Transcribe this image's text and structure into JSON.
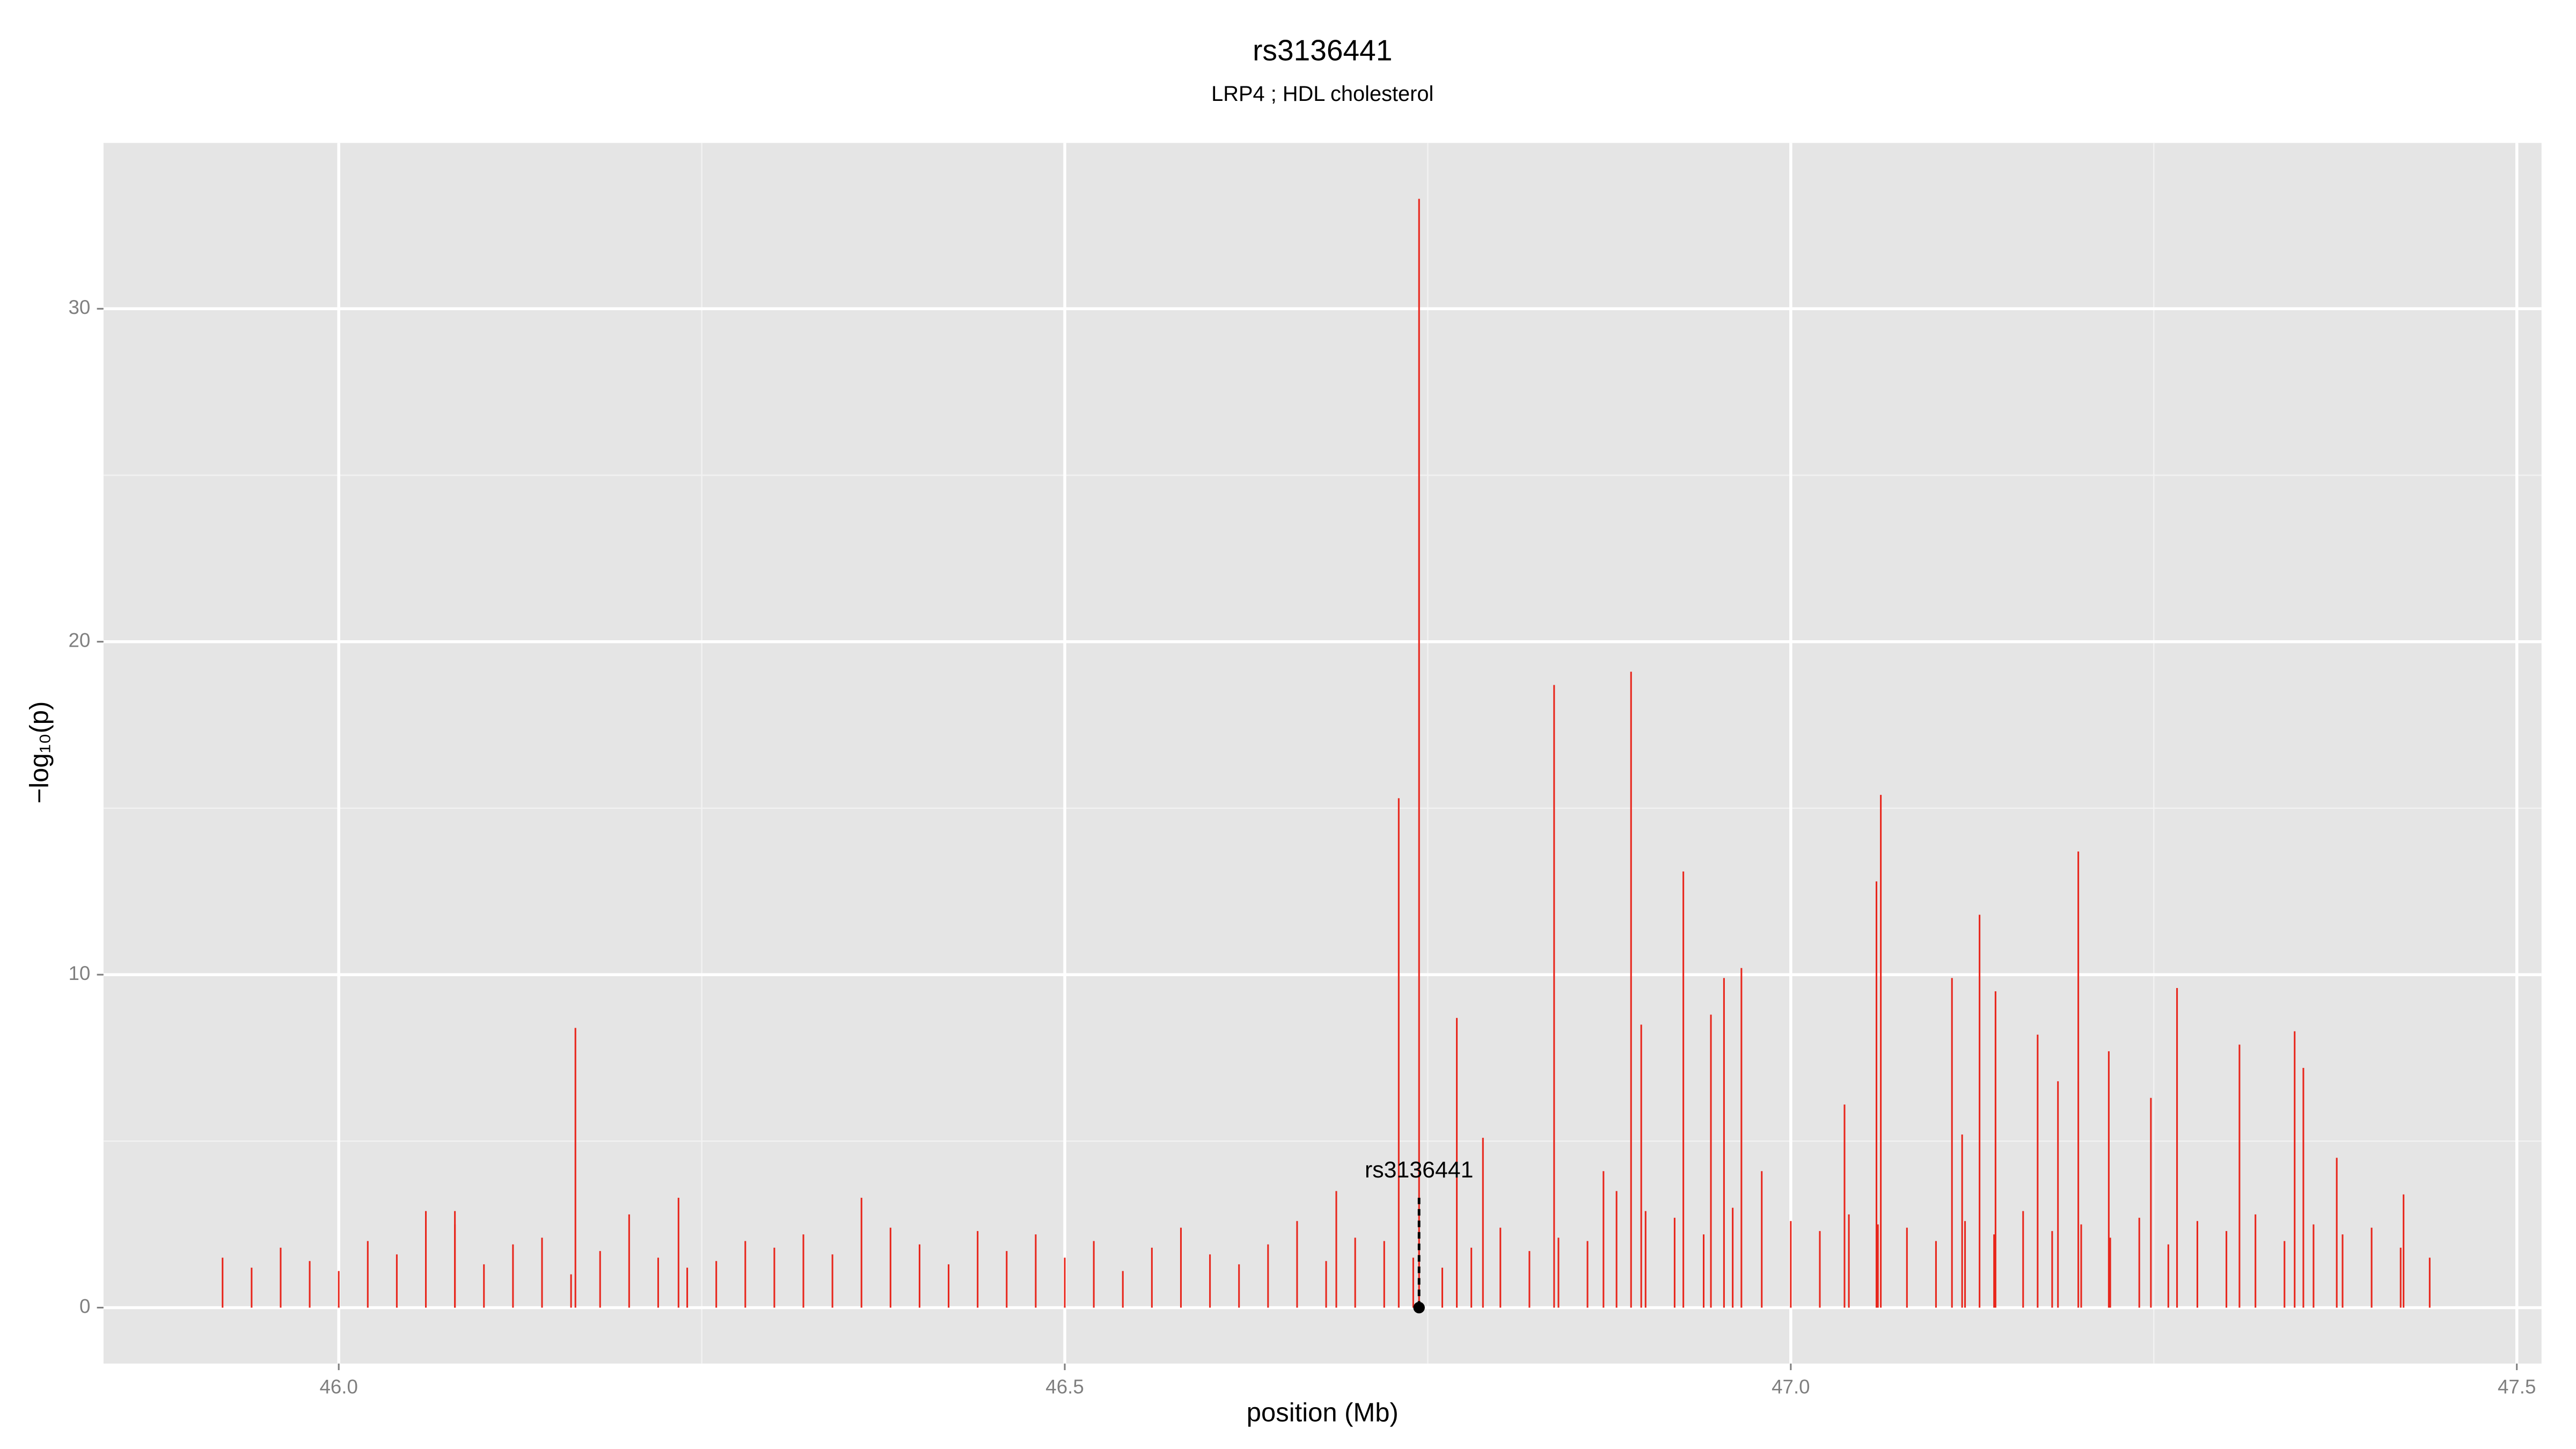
{
  "chart_data": {
    "type": "spike",
    "title": "rs3136441",
    "subtitle": "LRP4 ; HDL cholesterol",
    "x_label": "position (Mb)",
    "y_label": "−log₁₀(p)",
    "color": "#e8261c",
    "x": [
      45.92,
      45.94,
      45.96,
      45.98,
      46.0,
      46.02,
      46.04,
      46.06,
      46.08,
      46.1,
      46.12,
      46.14,
      46.16,
      46.18,
      46.2,
      46.22,
      46.24,
      46.26,
      46.28,
      46.3,
      46.32,
      46.34,
      46.36,
      46.38,
      46.4,
      46.42,
      46.44,
      46.46,
      46.48,
      46.5,
      46.52,
      46.54,
      46.56,
      46.58,
      46.6,
      46.62,
      46.64,
      46.66,
      46.68,
      46.7,
      46.72,
      46.74,
      46.76,
      46.78,
      46.8,
      46.82,
      46.84,
      46.86,
      46.88,
      46.9,
      46.92,
      46.94,
      46.96,
      46.98,
      47.0,
      47.02,
      47.04,
      47.06,
      47.08,
      47.1,
      47.12,
      47.14,
      47.16,
      47.18,
      47.2,
      47.22,
      47.24,
      47.26,
      47.28,
      47.3,
      47.32,
      47.34,
      47.36,
      47.38,
      47.4,
      47.42,
      47.44,
      46.163,
      46.73,
      46.744,
      46.77,
      46.788,
      46.837,
      46.89,
      46.897,
      46.926,
      46.945,
      46.954,
      46.966,
      47.037,
      47.059,
      47.062,
      47.111,
      47.118,
      47.13,
      47.141,
      47.17,
      47.184,
      47.198,
      47.219,
      47.248,
      47.266,
      47.309,
      47.347,
      47.353,
      47.376,
      47.422,
      46.687,
      46.871,
      46.234,
      46.08
    ],
    "values": [
      1.5,
      1.2,
      1.8,
      1.4,
      1.1,
      2.0,
      1.6,
      2.9,
      2.5,
      1.3,
      1.9,
      2.1,
      1.0,
      1.7,
      2.8,
      1.5,
      1.2,
      1.4,
      2.0,
      1.8,
      2.2,
      1.6,
      3.3,
      2.4,
      1.9,
      1.3,
      2.3,
      1.7,
      2.2,
      1.5,
      2.0,
      1.1,
      1.8,
      2.4,
      1.6,
      1.3,
      1.9,
      2.6,
      1.4,
      2.1,
      2.0,
      1.5,
      1.2,
      1.8,
      2.4,
      1.7,
      2.1,
      2.0,
      3.5,
      2.9,
      2.7,
      2.2,
      3.0,
      4.1,
      2.6,
      2.3,
      2.8,
      2.5,
      2.4,
      2.0,
      2.6,
      2.2,
      2.9,
      2.3,
      2.5,
      2.1,
      2.7,
      1.9,
      2.6,
      2.3,
      2.8,
      2.0,
      2.5,
      2.2,
      2.4,
      1.8,
      1.5,
      8.4,
      15.3,
      33.3,
      8.7,
      5.1,
      18.7,
      19.1,
      8.5,
      13.1,
      8.8,
      9.9,
      10.2,
      6.1,
      12.8,
      15.4,
      9.9,
      5.2,
      11.8,
      9.5,
      8.2,
      6.8,
      13.7,
      7.7,
      6.3,
      9.6,
      7.9,
      8.3,
      7.2,
      4.5,
      3.4,
      3.5,
      4.1,
      3.3,
      2.9
    ],
    "xlim": [
      45.838,
      47.517
    ],
    "ylim": [
      -1.68,
      34.98
    ],
    "xticks": [
      {
        "value": 46,
        "label": "46.0"
      },
      46.5,
      {
        "value": 47,
        "label": "47.0"
      },
      47.5
    ],
    "yticks": [
      0,
      10,
      20,
      30
    ],
    "x_minor_ticks": [
      46.25,
      46.75,
      47.25
    ],
    "y_minor_ticks": [
      5,
      15,
      25
    ],
    "grid": true,
    "annotation": {
      "text": "rs3136441",
      "x": 46.744,
      "y": 3.3
    }
  }
}
